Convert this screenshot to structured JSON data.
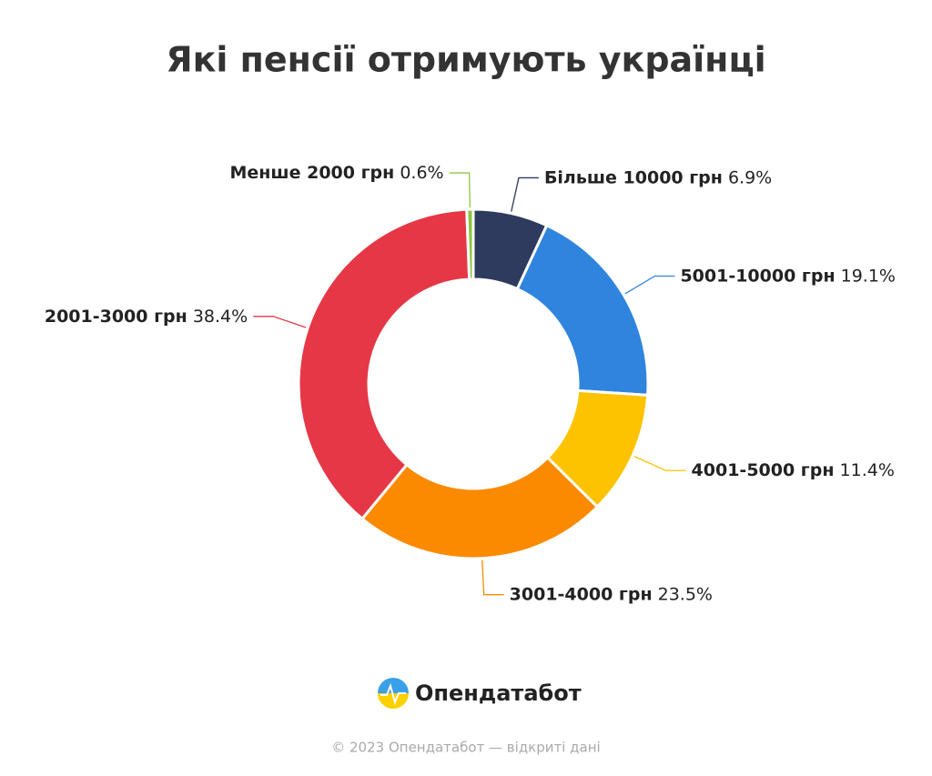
{
  "chart_data": {
    "type": "donut",
    "title": "Які пенсії отримують українці",
    "categories": [
      "Більше 10000 грн",
      "5001-10000 грн",
      "4001-5000 грн",
      "3001-4000 грн",
      "2001-3000 грн",
      "Менше 2000 грн"
    ],
    "values": [
      6.9,
      19.1,
      11.4,
      23.5,
      38.4,
      0.6
    ],
    "value_labels": [
      "6.9%",
      "19.1%",
      "11.4%",
      "23.5%",
      "38.4%",
      "0.6%"
    ],
    "colors": [
      "#2e3b5e",
      "#2f84de",
      "#fdc300",
      "#fb8a00",
      "#e63746",
      "#8cc63f"
    ]
  },
  "logo": "Опендатабот",
  "footer": "© 2023 Опендатабот — відкриті дані"
}
